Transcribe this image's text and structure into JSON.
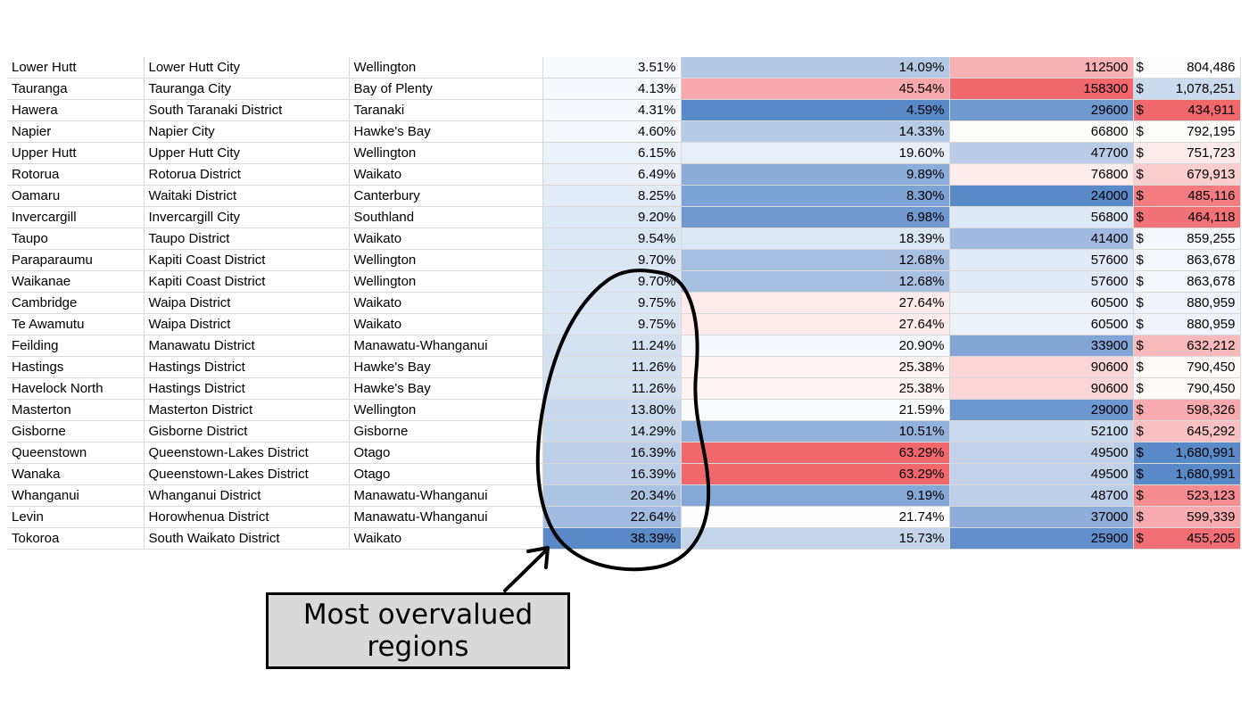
{
  "currency_symbol": "$",
  "colors": {
    "blue_dark": "#5a89c8",
    "red_dark": "#f0676c",
    "white": "#ffffff",
    "grid": "#d9d9d9"
  },
  "rows": [
    {
      "town": "Lower Hutt",
      "council": "Lower Hutt City",
      "region": "Wellington",
      "pct_a": "3.51%",
      "pct_b": "14.09%",
      "count": "112500",
      "price": "804,486"
    },
    {
      "town": "Tauranga",
      "council": "Tauranga City",
      "region": "Bay of Plenty",
      "pct_a": "4.13%",
      "pct_b": "45.54%",
      "count": "158300",
      "price": "1,078,251"
    },
    {
      "town": "Hawera",
      "council": "South Taranaki District",
      "region": "Taranaki",
      "pct_a": "4.31%",
      "pct_b": "4.59%",
      "count": "29600",
      "price": "434,911"
    },
    {
      "town": "Napier",
      "council": "Napier City",
      "region": "Hawke's Bay",
      "pct_a": "4.60%",
      "pct_b": "14.33%",
      "count": "66800",
      "price": "792,195"
    },
    {
      "town": "Upper Hutt",
      "council": "Upper Hutt City",
      "region": "Wellington",
      "pct_a": "6.15%",
      "pct_b": "19.60%",
      "count": "47700",
      "price": "751,723"
    },
    {
      "town": "Rotorua",
      "council": "Rotorua District",
      "region": "Waikato",
      "pct_a": "6.49%",
      "pct_b": "9.89%",
      "count": "76800",
      "price": "679,913"
    },
    {
      "town": "Oamaru",
      "council": "Waitaki District",
      "region": "Canterbury",
      "pct_a": "8.25%",
      "pct_b": "8.30%",
      "count": "24000",
      "price": "485,116"
    },
    {
      "town": "Invercargill",
      "council": "Invercargill City",
      "region": "Southland",
      "pct_a": "9.20%",
      "pct_b": "6.98%",
      "count": "56800",
      "price": "464,118"
    },
    {
      "town": "Taupo",
      "council": "Taupo District",
      "region": "Waikato",
      "pct_a": "9.54%",
      "pct_b": "18.39%",
      "count": "41400",
      "price": "859,255"
    },
    {
      "town": "Paraparaumu",
      "council": "Kapiti Coast District",
      "region": "Wellington",
      "pct_a": "9.70%",
      "pct_b": "12.68%",
      "count": "57600",
      "price": "863,678"
    },
    {
      "town": "Waikanae",
      "council": "Kapiti Coast District",
      "region": "Wellington",
      "pct_a": "9.70%",
      "pct_b": "12.68%",
      "count": "57600",
      "price": "863,678"
    },
    {
      "town": "Cambridge",
      "council": "Waipa District",
      "region": "Waikato",
      "pct_a": "9.75%",
      "pct_b": "27.64%",
      "count": "60500",
      "price": "880,959"
    },
    {
      "town": "Te Awamutu",
      "council": "Waipa District",
      "region": "Waikato",
      "pct_a": "9.75%",
      "pct_b": "27.64%",
      "count": "60500",
      "price": "880,959"
    },
    {
      "town": "Feilding",
      "council": "Manawatu District",
      "region": "Manawatu-Whanganui",
      "pct_a": "11.24%",
      "pct_b": "20.90%",
      "count": "33900",
      "price": "632,212"
    },
    {
      "town": "Hastings",
      "council": "Hastings District",
      "region": "Hawke's Bay",
      "pct_a": "11.26%",
      "pct_b": "25.38%",
      "count": "90600",
      "price": "790,450"
    },
    {
      "town": "Havelock North",
      "council": "Hastings District",
      "region": "Hawke's Bay",
      "pct_a": "11.26%",
      "pct_b": "25.38%",
      "count": "90600",
      "price": "790,450"
    },
    {
      "town": "Masterton",
      "council": "Masterton District",
      "region": "Wellington",
      "pct_a": "13.80%",
      "pct_b": "21.59%",
      "count": "29000",
      "price": "598,326"
    },
    {
      "town": "Gisborne",
      "council": "Gisborne District",
      "region": "Gisborne",
      "pct_a": "14.29%",
      "pct_b": "10.51%",
      "count": "52100",
      "price": "645,292"
    },
    {
      "town": "Queenstown",
      "council": "Queenstown-Lakes District",
      "region": "Otago",
      "pct_a": "16.39%",
      "pct_b": "63.29%",
      "count": "49500",
      "price": "1,680,991"
    },
    {
      "town": "Wanaka",
      "council": "Queenstown-Lakes District",
      "region": "Otago",
      "pct_a": "16.39%",
      "pct_b": "63.29%",
      "count": "49500",
      "price": "1,680,991"
    },
    {
      "town": "Whanganui",
      "council": "Whanganui District",
      "region": "Manawatu-Whanganui",
      "pct_a": "20.34%",
      "pct_b": "9.19%",
      "count": "48700",
      "price": "523,123"
    },
    {
      "town": "Levin",
      "council": "Horowhenua District",
      "region": "Manawatu-Whanganui",
      "pct_a": "22.64%",
      "pct_b": "21.74%",
      "count": "37000",
      "price": "599,339"
    },
    {
      "town": "Tokoroa",
      "council": "South Waikato District",
      "region": "Waikato",
      "pct_a": "38.39%",
      "pct_b": "15.73%",
      "count": "25900",
      "price": "455,205"
    }
  ],
  "callout": {
    "text": "Most overvalued regions"
  }
}
